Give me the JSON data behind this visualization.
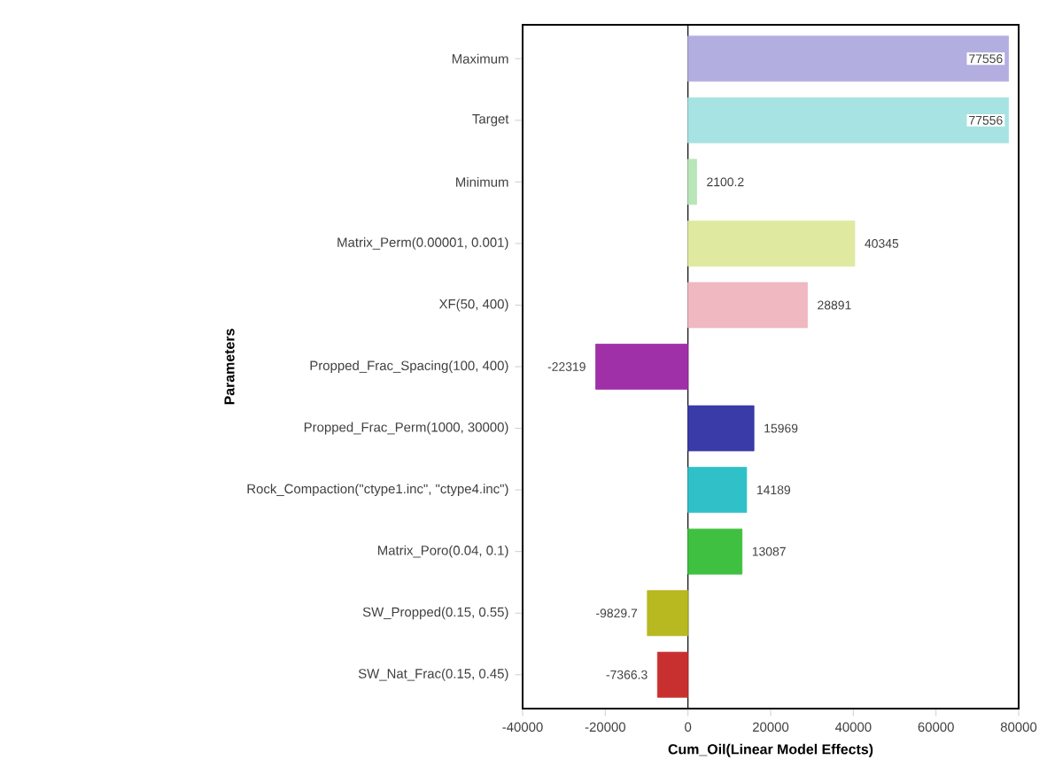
{
  "chart_data": {
    "type": "bar",
    "orientation": "horizontal",
    "xlabel": "Cum_Oil(Linear Model Effects)",
    "ylabel": "Parameters",
    "categories": [
      "Maximum",
      "Target",
      "Minimum",
      "Matrix_Perm(0.00001, 0.001)",
      "XF(50, 400)",
      "Propped_Frac_Spacing(100, 400)",
      "Propped_Frac_Perm(1000, 30000)",
      "Rock_Compaction(\"ctype1.inc\", \"ctype4.inc\")",
      "Matrix_Poro(0.04, 0.1)",
      "SW_Propped(0.15, 0.55)",
      "SW_Nat_Frac(0.15, 0.45)"
    ],
    "values": [
      77556,
      77556,
      2100.2,
      40345,
      28891,
      -22319,
      15969,
      14189,
      13087,
      -9829.7,
      -7366.3
    ],
    "colors": [
      "#b3aee0",
      "#a8e3e3",
      "#b8e6b8",
      "#dfe9a0",
      "#f0b8c0",
      "#a030a8",
      "#3a3aa8",
      "#30c0c8",
      "#40c040",
      "#b8b820",
      "#c83030"
    ],
    "data_labels": true,
    "xlim": [
      -40000,
      80000
    ],
    "xticks": [
      -40000,
      -20000,
      0,
      20000,
      40000,
      60000,
      80000
    ]
  }
}
